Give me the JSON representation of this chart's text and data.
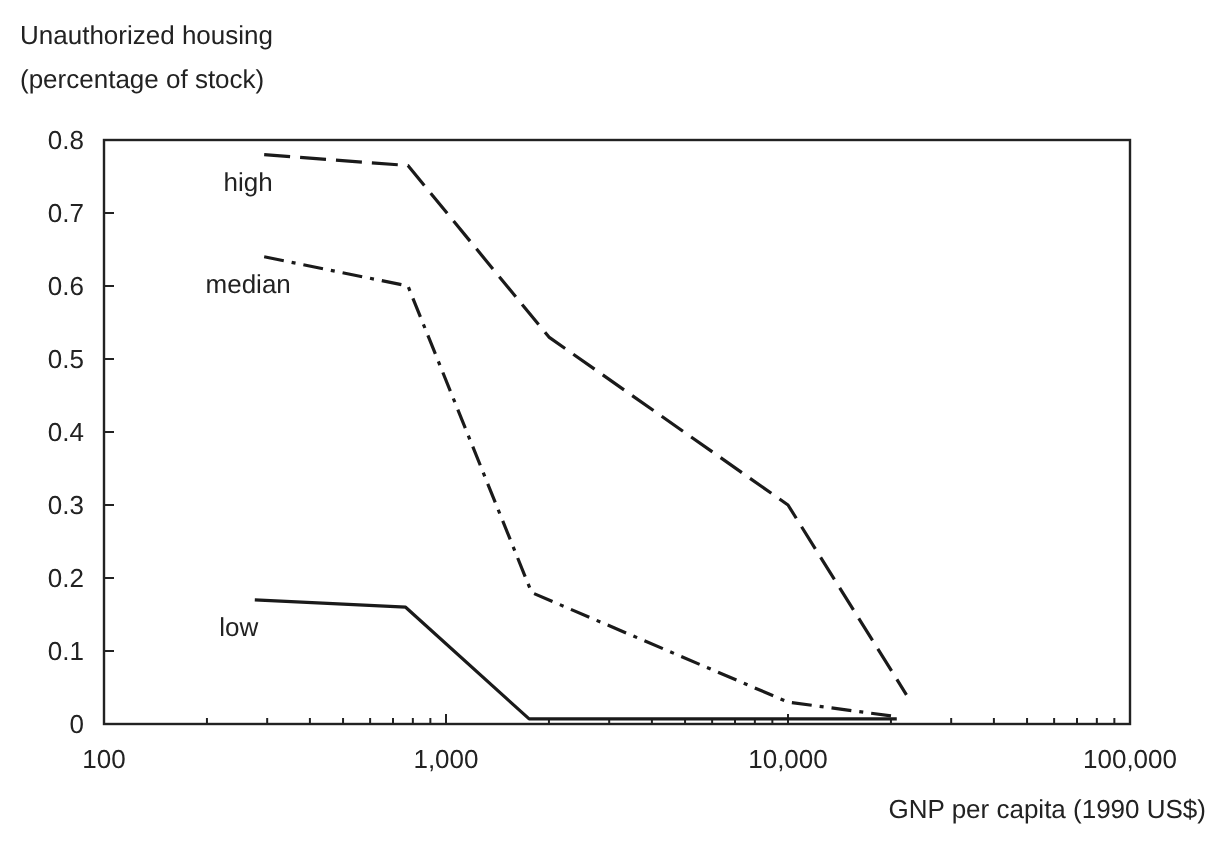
{
  "chart_data": {
    "type": "line",
    "ylabel": "Unauthorized housing\n(percentage of stock)",
    "xlabel": "GNP per capita (1990 US$)",
    "log": "x",
    "xlim": [
      100,
      100000
    ],
    "ylim": [
      0,
      0.8
    ],
    "xticks": [
      {
        "value": 100,
        "label": "100"
      },
      {
        "value": 200,
        "label": null
      },
      {
        "value": 300,
        "label": null
      },
      {
        "value": 400,
        "label": null
      },
      {
        "value": 500,
        "label": null
      },
      {
        "value": 600,
        "label": null
      },
      {
        "value": 700,
        "label": null
      },
      {
        "value": 800,
        "label": null
      },
      {
        "value": 900,
        "label": null
      },
      {
        "value": 1000,
        "label": "1,000"
      },
      {
        "value": 2000,
        "label": null
      },
      {
        "value": 3000,
        "label": null
      },
      {
        "value": 4000,
        "label": null
      },
      {
        "value": 5000,
        "label": null
      },
      {
        "value": 6000,
        "label": null
      },
      {
        "value": 7000,
        "label": null
      },
      {
        "value": 8000,
        "label": null
      },
      {
        "value": 9000,
        "label": null
      },
      {
        "value": 10000,
        "label": "10,000"
      },
      {
        "value": 20000,
        "label": null
      },
      {
        "value": 30000,
        "label": null
      },
      {
        "value": 40000,
        "label": null
      },
      {
        "value": 50000,
        "label": null
      },
      {
        "value": 60000,
        "label": null
      },
      {
        "value": 70000,
        "label": null
      },
      {
        "value": 80000,
        "label": null
      },
      {
        "value": 90000,
        "label": null
      },
      {
        "value": 100000,
        "label": "100,000"
      }
    ],
    "yticks": [
      0,
      0.1,
      0.2,
      0.3,
      0.4,
      0.5,
      0.6,
      0.7,
      0.8
    ],
    "grid": false,
    "marker": "none",
    "series": [
      {
        "name": "high",
        "color": "#1a1a1a",
        "line_style": "dashed",
        "x": [
          294,
          774,
          2000,
          10000,
          22200
        ],
        "values": [
          0.78,
          0.765,
          0.53,
          0.3,
          0.04
        ]
      },
      {
        "name": "median",
        "color": "#1a1a1a",
        "line_style": "dashdot",
        "x": [
          294,
          774,
          1780,
          10000,
          20800
        ],
        "values": [
          0.64,
          0.6,
          0.18,
          0.03,
          0.01
        ]
      },
      {
        "name": "low",
        "color": "#1a1a1a",
        "line_style": "solid",
        "x": [
          276,
          762,
          1750,
          20800
        ],
        "values": [
          0.17,
          0.16,
          0.007,
          0.007
        ]
      }
    ]
  }
}
